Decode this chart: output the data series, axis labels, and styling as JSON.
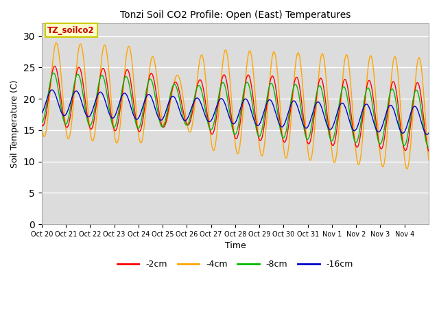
{
  "title": "Tonzi Soil CO2 Profile: Open (East) Temperatures",
  "xlabel": "Time",
  "ylabel": "Soil Temperature (C)",
  "ylim": [
    0,
    32
  ],
  "yticks": [
    0,
    5,
    10,
    15,
    20,
    25,
    30
  ],
  "bg_color": "#dcdcdc",
  "colors": {
    "-2cm": "#ff0000",
    "-4cm": "#ffa500",
    "-8cm": "#00bb00",
    "-16cm": "#0000cc"
  },
  "annotation_text": "TZ_soilco2",
  "annotation_bg": "#ffffcc",
  "annotation_border": "#cccc00",
  "annotation_text_color": "#cc0000",
  "x_tick_labels": [
    "Oct 20",
    "Oct 21",
    "Oct 22",
    "Oct 23",
    "Oct 24",
    "Oct 25",
    "Oct 26",
    "Oct 27",
    "Oct 28",
    "Oct 29",
    "Oct 30",
    "Oct 31",
    "Nov 1",
    "Nov 2",
    "Nov 3",
    "Nov 4"
  ],
  "n_days": 16,
  "figsize": [
    6.4,
    4.8
  ],
  "dpi": 100
}
